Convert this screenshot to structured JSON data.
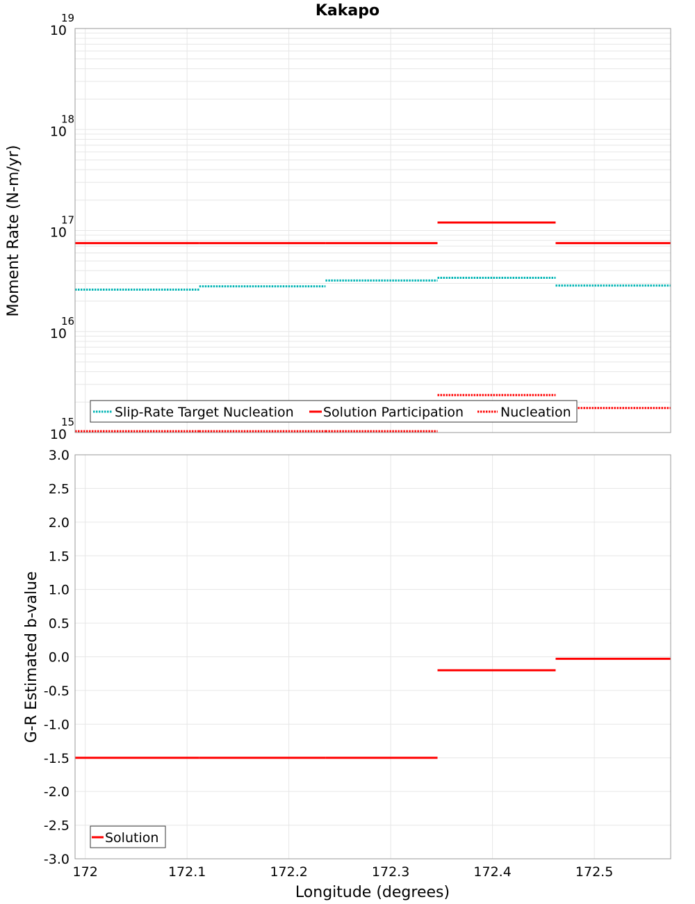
{
  "chart_data": {
    "type": "line",
    "title": "Kakapo",
    "xlabel": "Longitude (degrees)",
    "xlim": [
      171.99,
      172.575
    ],
    "xticks": [
      "172",
      "172.1",
      "172.2",
      "172.3",
      "172.4",
      "172.5"
    ],
    "xtick_values": [
      172.0,
      172.1,
      172.2,
      172.3,
      172.4,
      172.5
    ],
    "colors": {
      "target": "#00b4b4",
      "solution": "#ff0000",
      "grid": "#e6e6e6",
      "frame": "#999999"
    },
    "panels": [
      {
        "id": "moment",
        "ylabel": "Moment Rate (N-m/yr)",
        "yscale": "log",
        "ylim": [
          1000000000000000.0,
          1e+19
        ],
        "yticks": [
          {
            "base": "10",
            "exp": "15",
            "value": 1000000000000000.0
          },
          {
            "base": "10",
            "exp": "16",
            "value": 1e+16
          },
          {
            "base": "10",
            "exp": "17",
            "value": 1e+17
          },
          {
            "base": "10",
            "exp": "18",
            "value": 1e+18
          },
          {
            "base": "10",
            "exp": "19",
            "value": 1e+19
          }
        ],
        "legend": {
          "position": "bottom-left",
          "entries": [
            "Slip-Rate Target Nucleation",
            "Solution Participation",
            "Nucleation"
          ]
        },
        "series": [
          {
            "name": "Slip-Rate Target Nucleation",
            "color": "#00b4b4",
            "style": "dotted",
            "segments": [
              {
                "x": [
                  171.99,
                  172.112
                ],
                "y": 2.6e+16
              },
              {
                "x": [
                  172.112,
                  172.236
                ],
                "y": 2.8e+16
              },
              {
                "x": [
                  172.236,
                  172.346
                ],
                "y": 3.2e+16
              },
              {
                "x": [
                  172.346,
                  172.462
                ],
                "y": 3.4e+16
              },
              {
                "x": [
                  172.462,
                  172.575
                ],
                "y": 2.85e+16
              }
            ]
          },
          {
            "name": "Solution Participation",
            "color": "#ff0000",
            "style": "solid",
            "segments": [
              {
                "x": [
                  171.99,
                  172.112
                ],
                "y": 7.5e+16
              },
              {
                "x": [
                  172.112,
                  172.236
                ],
                "y": 7.5e+16
              },
              {
                "x": [
                  172.236,
                  172.346
                ],
                "y": 7.5e+16
              },
              {
                "x": [
                  172.346,
                  172.462
                ],
                "y": 1.2e+17
              },
              {
                "x": [
                  172.462,
                  172.575
                ],
                "y": 7.5e+16
              }
            ]
          },
          {
            "name": "Nucleation",
            "color": "#ff0000",
            "style": "dotted",
            "segments": [
              {
                "x": [
                  171.99,
                  172.112
                ],
                "y": 1030000000000000.0
              },
              {
                "x": [
                  172.112,
                  172.236
                ],
                "y": 1030000000000000.0
              },
              {
                "x": [
                  172.236,
                  172.346
                ],
                "y": 1030000000000000.0
              },
              {
                "x": [
                  172.346,
                  172.462
                ],
                "y": 2350000000000000.0
              },
              {
                "x": [
                  172.462,
                  172.575
                ],
                "y": 1750000000000000.0
              }
            ]
          }
        ]
      },
      {
        "id": "bvalue",
        "ylabel": "G-R Estimated b-value",
        "yscale": "linear",
        "ylim": [
          -3.0,
          3.0
        ],
        "yticks": [
          {
            "label": "3.0",
            "value": 3.0
          },
          {
            "label": "2.5",
            "value": 2.5
          },
          {
            "label": "2.0",
            "value": 2.0
          },
          {
            "label": "1.5",
            "value": 1.5
          },
          {
            "label": "1.0",
            "value": 1.0
          },
          {
            "label": "0.5",
            "value": 0.5
          },
          {
            "label": "0.0",
            "value": 0.0
          },
          {
            "label": "-0.5",
            "value": -0.5
          },
          {
            "label": "-1.0",
            "value": -1.0
          },
          {
            "label": "-1.5",
            "value": -1.5
          },
          {
            "label": "-2.0",
            "value": -2.0
          },
          {
            "label": "-2.5",
            "value": -2.5
          },
          {
            "label": "-3.0",
            "value": -3.0
          }
        ],
        "legend": {
          "position": "bottom-left",
          "entries": [
            "Solution"
          ]
        },
        "series": [
          {
            "name": "Solution",
            "color": "#ff0000",
            "style": "solid",
            "segments": [
              {
                "x": [
                  171.99,
                  172.112
                ],
                "y": -1.5
              },
              {
                "x": [
                  172.112,
                  172.236
                ],
                "y": -1.5
              },
              {
                "x": [
                  172.236,
                  172.346
                ],
                "y": -1.5
              },
              {
                "x": [
                  172.346,
                  172.462
                ],
                "y": -0.2
              },
              {
                "x": [
                  172.462,
                  172.575
                ],
                "y": -0.03
              }
            ]
          }
        ]
      }
    ]
  }
}
